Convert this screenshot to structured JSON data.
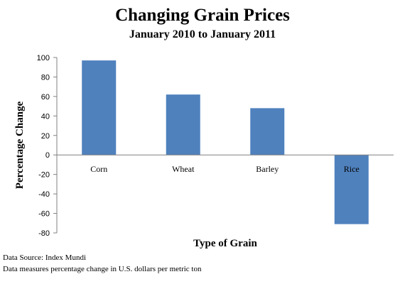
{
  "chart_data": {
    "type": "bar",
    "title": "Changing Grain Prices",
    "subtitle": "January 2010 to January 2011",
    "xlabel": "Type of Grain",
    "ylabel": "Percentage Change",
    "categories": [
      "Corn",
      "Wheat",
      "Barley",
      "Rice"
    ],
    "values": [
      97,
      62,
      48,
      -71
    ],
    "ylim": [
      -80,
      100
    ],
    "yticks": [
      100,
      80,
      60,
      40,
      20,
      0,
      -20,
      -40,
      -60,
      -80
    ],
    "bar_color": "#4f81bd",
    "grid": false,
    "legend": "none"
  },
  "footnotes": {
    "source": "Data Source: Index Mundi",
    "note": "Data measures percentage change in U.S. dollars per metric ton"
  }
}
